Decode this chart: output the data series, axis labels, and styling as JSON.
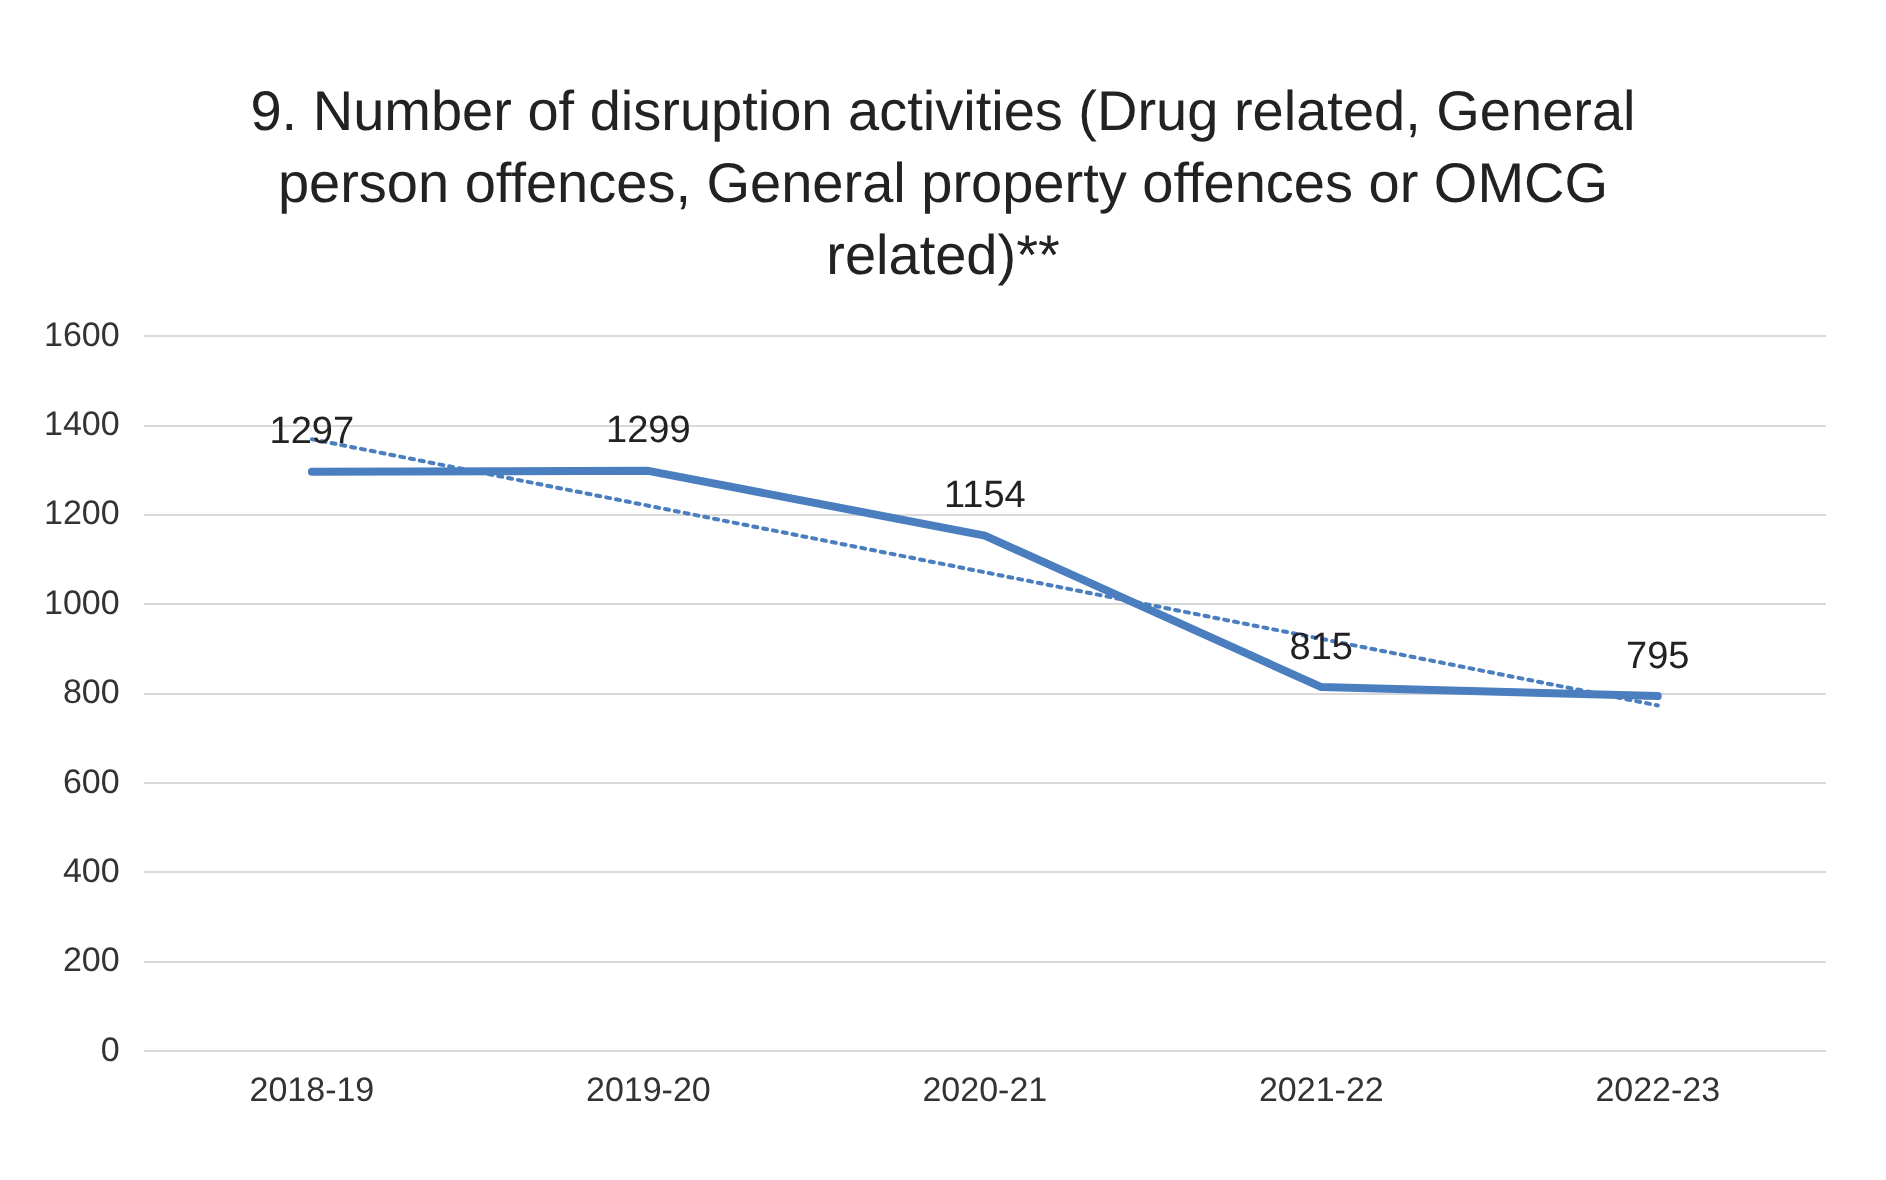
{
  "chart_data": {
    "type": "line",
    "title": "9. Number of disruption activities (Drug related, General person offences, General property offences or OMCG related)**",
    "categories": [
      "2018-19",
      "2019-20",
      "2020-21",
      "2021-22",
      "2022-23"
    ],
    "series": [
      {
        "color": "#4a7ebf",
        "values": [
          1297,
          1299,
          1154,
          815,
          795
        ],
        "value_labels": [
          "1297",
          "1299",
          "1154",
          "815",
          "795"
        ]
      },
      {
        "type": "line",
        "color": "#4a7ebf",
        "line_style": "dotted",
        "values": [
          1370,
          1221,
          1072,
          923,
          774
        ]
      }
    ],
    "ylim": [
      0,
      1600
    ],
    "yticks": [
      0,
      200,
      400,
      600,
      800,
      1000,
      1200,
      1400,
      1600
    ],
    "grid": "y",
    "legend": false,
    "marker": "none"
  }
}
